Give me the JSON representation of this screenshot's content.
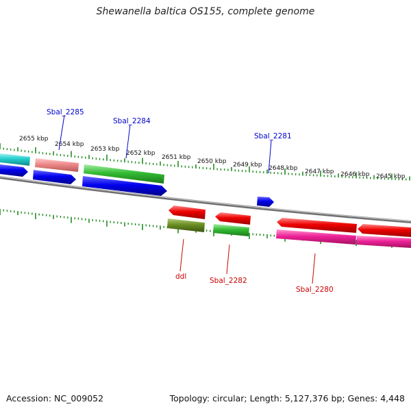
{
  "title": "Shewanella baltica OS155, complete genome",
  "accession": "Accession: NC_009052",
  "stats": "Topology: circular; Length: 5,127,376 bp; Genes: 4,448",
  "kbp_labels": [
    "2655 kbp",
    "2654 kbp",
    "2653 kbp",
    "2652 kbp",
    "2651 kbp",
    "2650 kbp",
    "2649 kbp",
    "2648 kbp",
    "2647 kbp",
    "2646 kbp",
    "2645 kbp"
  ],
  "gene_labels": {
    "sbal_2285": "Sbal_2285",
    "sbal_2284": "Sbal_2284",
    "sbal_2281": "Sbal_2281",
    "ddl": "ddl",
    "sbal_2282": "Sbal_2282",
    "sbal_2280": "Sbal_2280"
  },
  "colors": {
    "forward_label": "#0000cc",
    "reverse_label": "#cc0000",
    "backbone": "#888888",
    "tick": "#228b22",
    "blue": "#0000ee",
    "cyan": "#22cccc",
    "salmon": "#ee8888",
    "green": "#33bb33",
    "red": "#ee0000",
    "olive": "#6b8e23",
    "magenta": "#ee2299"
  }
}
